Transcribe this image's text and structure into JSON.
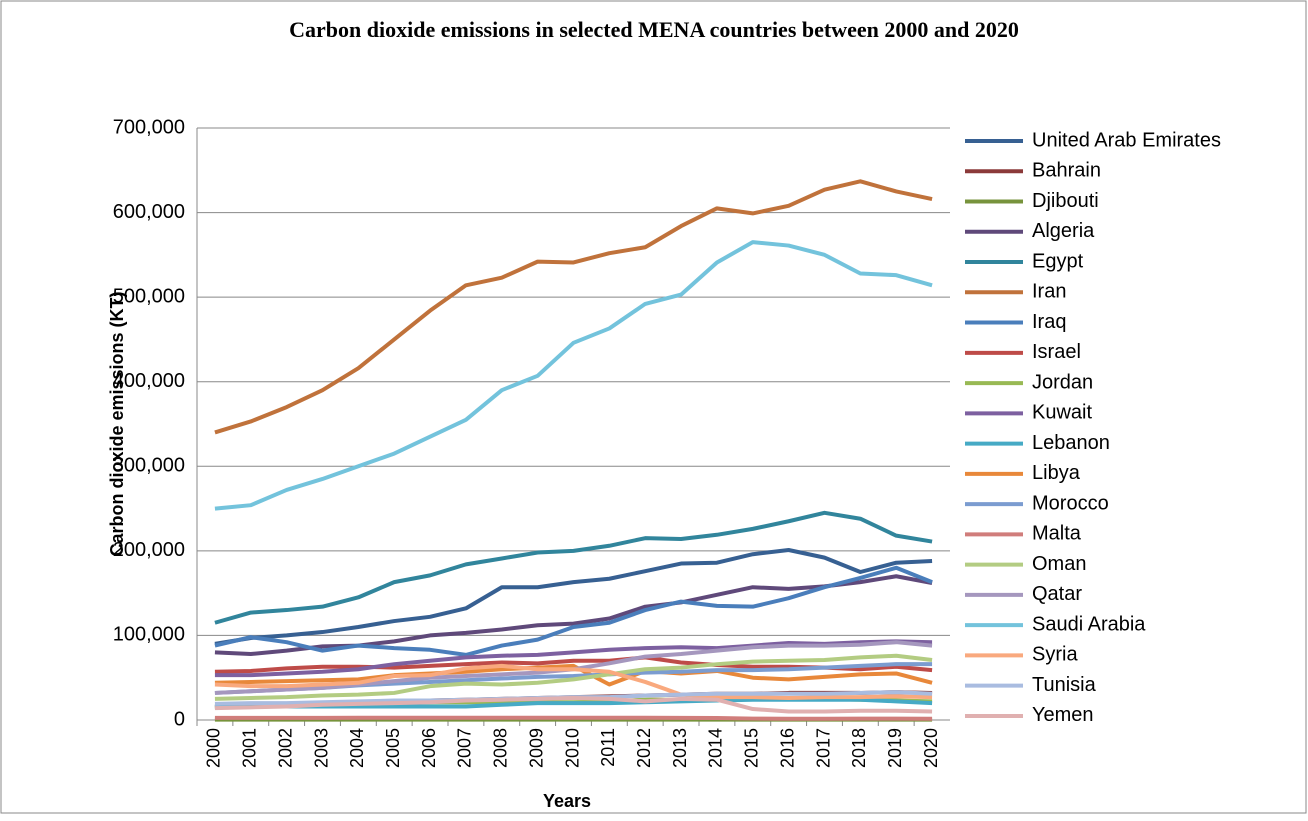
{
  "chart_data": {
    "type": "line",
    "title": "Carbon dioxide emissions in selected MENA countries between 2000 and 2020",
    "y_label": "Carbon dioxide emissions (KT)",
    "x_label": "Years",
    "categories": [
      "2000",
      "2001",
      "2002",
      "2003",
      "2004",
      "2005",
      "2006",
      "2007",
      "2008",
      "2009",
      "2010",
      "2011",
      "2012",
      "2013",
      "2014",
      "2015",
      "2016",
      "2017",
      "2018",
      "2019",
      "2020"
    ],
    "ylim": [
      0,
      700000
    ],
    "yticks": [
      {
        "value": 0,
        "label": "0"
      },
      {
        "value": 100000,
        "label": "100,000"
      },
      {
        "value": 200000,
        "label": "200,000"
      },
      {
        "value": 300000,
        "label": "300,000"
      },
      {
        "value": 400000,
        "label": "400,000"
      },
      {
        "value": 500000,
        "label": "500,000"
      },
      {
        "value": 600000,
        "label": "600,000"
      },
      {
        "value": 700000,
        "label": "700,000"
      }
    ],
    "grid": true,
    "legend": "right",
    "series": [
      {
        "name": "United Arab Emirates",
        "color": "#376092",
        "values": [
          90000,
          97000,
          100000,
          104000,
          110000,
          117000,
          122000,
          132000,
          157000,
          157000,
          163000,
          167000,
          176000,
          185000,
          186000,
          196000,
          201000,
          192000,
          175000,
          186000,
          188000
        ]
      },
      {
        "name": "Bahrain",
        "color": "#8b3a3a",
        "values": [
          16000,
          17000,
          18000,
          19000,
          20000,
          22000,
          23000,
          24000,
          25000,
          26000,
          27000,
          28000,
          29000,
          30000,
          31000,
          31000,
          32000,
          32000,
          32000,
          33000,
          32000
        ]
      },
      {
        "name": "Djibouti",
        "color": "#77933c",
        "values": [
          400,
          400,
          400,
          400,
          400,
          400,
          400,
          400,
          400,
          400,
          500,
          500,
          500,
          500,
          500,
          500,
          500,
          500,
          500,
          500,
          500
        ]
      },
      {
        "name": "Algeria",
        "color": "#5f497a",
        "values": [
          80000,
          78000,
          82000,
          87000,
          88000,
          93000,
          100000,
          103000,
          107000,
          112000,
          114000,
          120000,
          134000,
          139000,
          148000,
          157000,
          155000,
          158000,
          163000,
          170000,
          162000
        ]
      },
      {
        "name": "Egypt",
        "color": "#31859c",
        "values": [
          115000,
          127000,
          130000,
          134000,
          145000,
          163000,
          171000,
          184000,
          191000,
          198000,
          200000,
          206000,
          215000,
          214000,
          219000,
          226000,
          235000,
          245000,
          238000,
          218000,
          211000
        ]
      },
      {
        "name": "Iran",
        "color": "#c0723b",
        "values": [
          340000,
          353000,
          370000,
          390000,
          416000,
          450000,
          484000,
          514000,
          523000,
          542000,
          541000,
          552000,
          559000,
          584000,
          605000,
          599000,
          608000,
          627000,
          637000,
          625000,
          616000
        ]
      },
      {
        "name": "Iraq",
        "color": "#4a7ebb",
        "values": [
          88000,
          98000,
          92000,
          82000,
          88000,
          85000,
          83000,
          77000,
          88000,
          95000,
          110000,
          115000,
          130000,
          140000,
          135000,
          134000,
          144000,
          157000,
          168000,
          180000,
          163000
        ]
      },
      {
        "name": "Israel",
        "color": "#be4b48",
        "values": [
          57000,
          58000,
          61000,
          63000,
          63000,
          62000,
          64000,
          66000,
          68000,
          67000,
          70000,
          70000,
          74000,
          68000,
          65000,
          63000,
          63000,
          62000,
          60000,
          63000,
          59000
        ]
      },
      {
        "name": "Jordan",
        "color": "#98b954",
        "values": [
          15000,
          16000,
          17000,
          18000,
          19000,
          21000,
          21000,
          21000,
          21000,
          21000,
          21000,
          22000,
          24000,
          24000,
          25000,
          25000,
          25000,
          25000,
          24000,
          23000,
          22000
        ]
      },
      {
        "name": "Kuwait",
        "color": "#7d60a0",
        "values": [
          53000,
          53000,
          55000,
          57000,
          60000,
          66000,
          70000,
          74000,
          76000,
          77000,
          80000,
          83000,
          85000,
          86000,
          85000,
          88000,
          91000,
          90000,
          92000,
          93000,
          92000
        ]
      },
      {
        "name": "Lebanon",
        "color": "#46aac5",
        "values": [
          15000,
          16000,
          16000,
          16000,
          16000,
          16000,
          16000,
          16000,
          18000,
          20000,
          20000,
          20000,
          21000,
          22000,
          23000,
          24000,
          24000,
          24000,
          24000,
          22000,
          20000
        ]
      },
      {
        "name": "Libya",
        "color": "#e8883a",
        "values": [
          44000,
          45000,
          46000,
          47000,
          48000,
          53000,
          55000,
          57000,
          60000,
          62000,
          64000,
          42000,
          58000,
          55000,
          58000,
          50000,
          48000,
          51000,
          54000,
          55000,
          44000
        ]
      },
      {
        "name": "Morocco",
        "color": "#7b9cd0",
        "values": [
          32000,
          34000,
          36000,
          38000,
          41000,
          43000,
          45000,
          47000,
          49000,
          51000,
          52000,
          54000,
          56000,
          57000,
          59000,
          59000,
          60000,
          62000,
          64000,
          66000,
          66000
        ]
      },
      {
        "name": "Malta",
        "color": "#d07d7b",
        "values": [
          2500,
          2500,
          2500,
          2500,
          2600,
          2600,
          2700,
          2700,
          2700,
          2600,
          2600,
          2600,
          2600,
          2500,
          2400,
          1700,
          1500,
          1500,
          1600,
          1600,
          1500
        ]
      },
      {
        "name": "Oman",
        "color": "#b3cc82",
        "values": [
          25000,
          26000,
          27000,
          29000,
          30000,
          32000,
          40000,
          43000,
          42000,
          44000,
          48000,
          54000,
          60000,
          62000,
          66000,
          69000,
          70000,
          71000,
          74000,
          76000,
          71000
        ]
      },
      {
        "name": "Qatar",
        "color": "#a597be",
        "values": [
          32000,
          34000,
          36000,
          38000,
          42000,
          46000,
          50000,
          52000,
          54000,
          56000,
          60000,
          67000,
          75000,
          78000,
          82000,
          86000,
          88000,
          88000,
          89000,
          92000,
          88000
        ]
      },
      {
        "name": "Saudi Arabia",
        "color": "#73c3dc",
        "values": [
          250000,
          254000,
          272000,
          285000,
          300000,
          315000,
          335000,
          355000,
          390000,
          407000,
          446000,
          463000,
          492000,
          503000,
          541000,
          565000,
          561000,
          550000,
          528000,
          526000,
          514000
        ]
      },
      {
        "name": "Syria",
        "color": "#f9a97e",
        "values": [
          42000,
          40000,
          40000,
          42000,
          44000,
          52000,
          53000,
          61000,
          64000,
          60000,
          60000,
          57000,
          45000,
          30000,
          27000,
          27000,
          26000,
          27000,
          27000,
          28000,
          27000
        ]
      },
      {
        "name": "Tunisia",
        "color": "#a9bce0",
        "values": [
          19000,
          20000,
          20000,
          21000,
          22000,
          23000,
          23000,
          24000,
          25000,
          26000,
          27000,
          27000,
          29000,
          30000,
          31000,
          31000,
          31000,
          31000,
          32000,
          33000,
          31000
        ]
      },
      {
        "name": "Yemen",
        "color": "#e0b0b0",
        "values": [
          14000,
          15000,
          16000,
          18000,
          19000,
          20000,
          21000,
          23000,
          24000,
          25000,
          26000,
          25000,
          22000,
          25000,
          24000,
          13000,
          10000,
          10000,
          11000,
          11000,
          10000
        ]
      }
    ]
  }
}
